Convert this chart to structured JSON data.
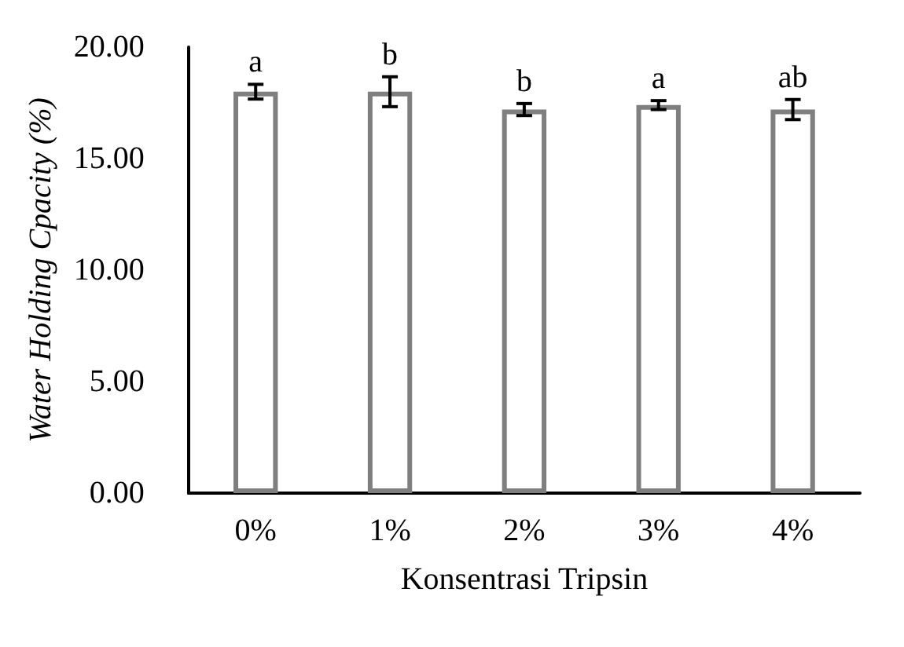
{
  "chart_data": {
    "type": "bar",
    "xlabel": "Konsentrasi Tripsin",
    "ylabel": "Water Holding Cpacity (%)",
    "categories": [
      "0%",
      "1%",
      "2%",
      "3%",
      "4%"
    ],
    "series": [
      {
        "color": "#ffffff",
        "values": [
          18.0,
          18.0,
          17.2,
          17.4,
          17.2
        ],
        "errors": [
          0.33,
          0.67,
          0.27,
          0.2,
          0.45
        ]
      }
    ],
    "ylim": [
      0,
      20
    ],
    "yticks": [
      {
        "value": 0,
        "label": "0.00"
      },
      {
        "value": 5,
        "label": "5.00"
      },
      {
        "value": 10,
        "label": "10.00"
      },
      {
        "value": 15,
        "label": "15.00"
      },
      {
        "value": 20,
        "label": "20.00"
      }
    ],
    "grid": false,
    "annotations": [
      {
        "text": "a",
        "x": "0%",
        "y": 18.33
      },
      {
        "text": "b",
        "x": "1%",
        "y": 18.67
      },
      {
        "text": "b",
        "x": "2%",
        "y": 17.47
      },
      {
        "text": "a",
        "x": "3%",
        "y": 17.6
      },
      {
        "text": "ab",
        "x": "4%",
        "y": 17.65
      }
    ]
  }
}
